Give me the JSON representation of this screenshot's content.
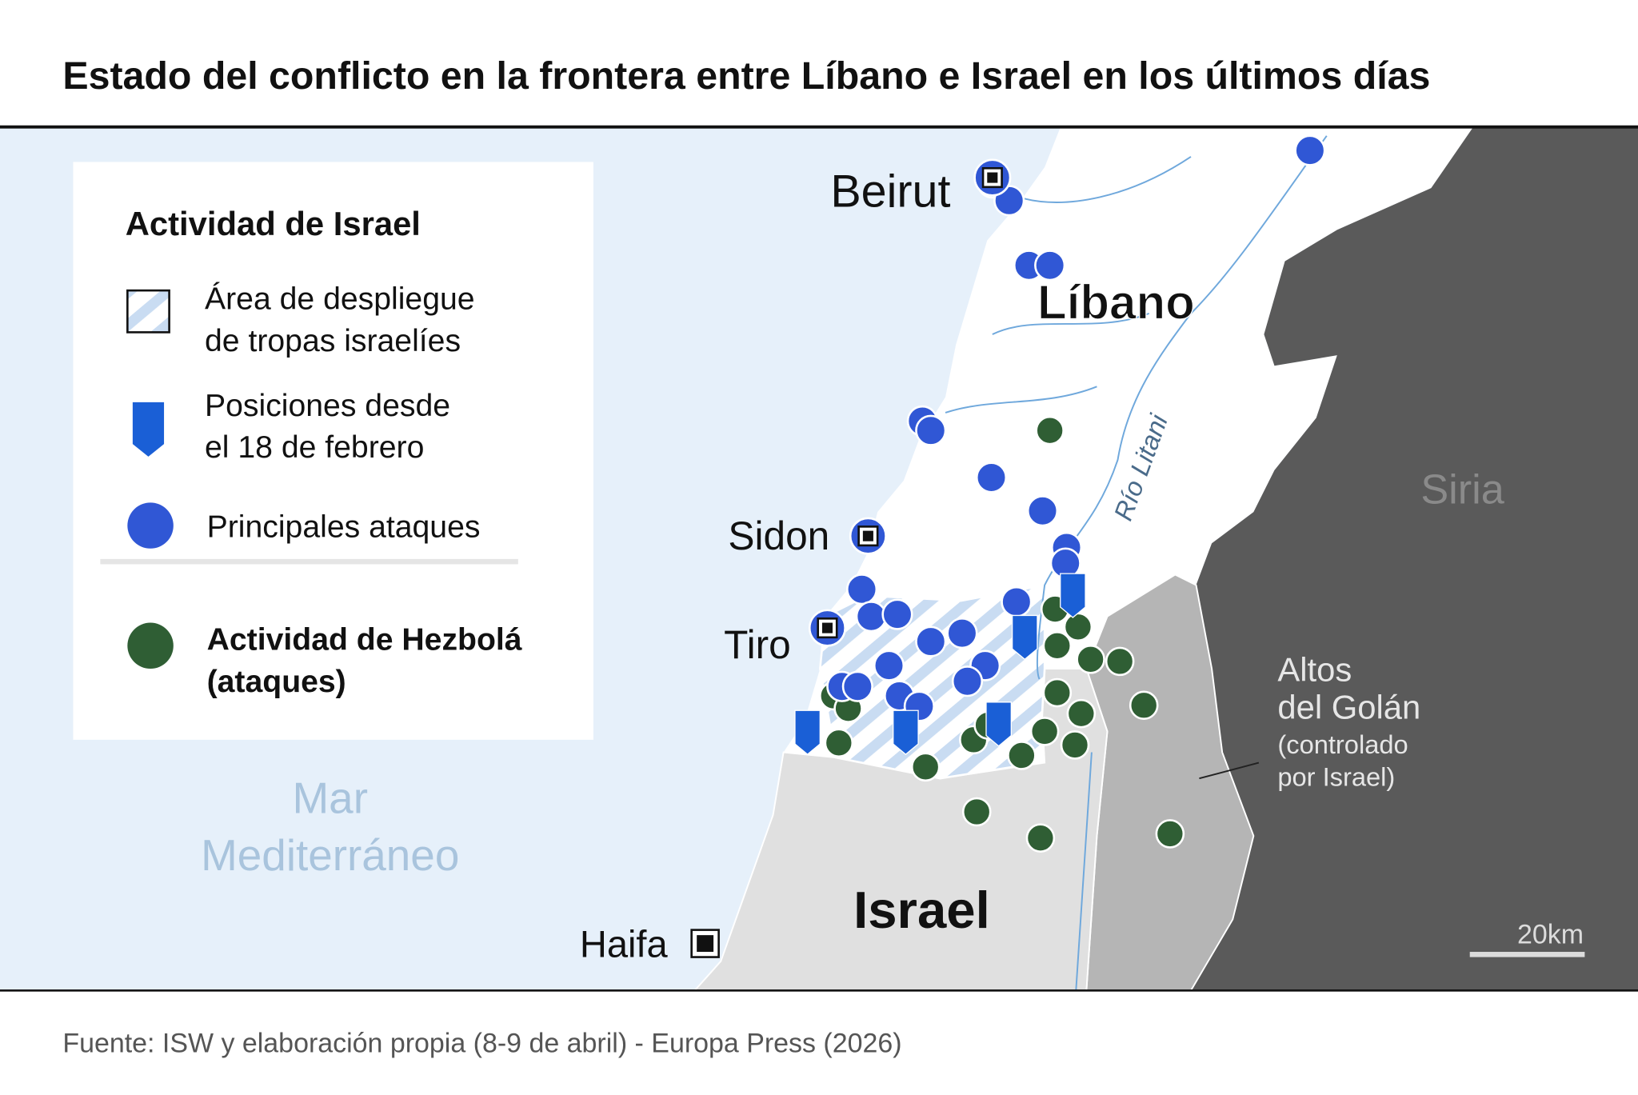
{
  "header": {
    "title": "Estado del conflicto en la frontera entre Líbano e Israel en los últimos días"
  },
  "legend": {
    "title": "Actividad de Israel",
    "deployment": [
      "Área de despliegue",
      "de tropas israelíes"
    ],
    "positions": [
      "Posiciones desde",
      "el 18 de febrero"
    ],
    "attacks": "Principales ataques",
    "hezbollah": [
      "Actividad de Hezbolá",
      "(ataques)"
    ]
  },
  "labels": {
    "beirut": "Beirut",
    "lebanon": "Líbano",
    "sidon": "Sidon",
    "tyre": "Tiro",
    "haifa": "Haifa",
    "israel": "Israel",
    "syria": "Siria",
    "river": "Río Litani",
    "golan": [
      "Altos",
      "del Golán",
      "(controlado",
      "por Israel)"
    ],
    "sea": [
      "Mar",
      "Mediterráneo"
    ],
    "scale": "20km"
  },
  "footer": {
    "source": "Fuente: ISW y elaboración propia (8-9 de abril) - Europa Press (2026)"
  }
}
